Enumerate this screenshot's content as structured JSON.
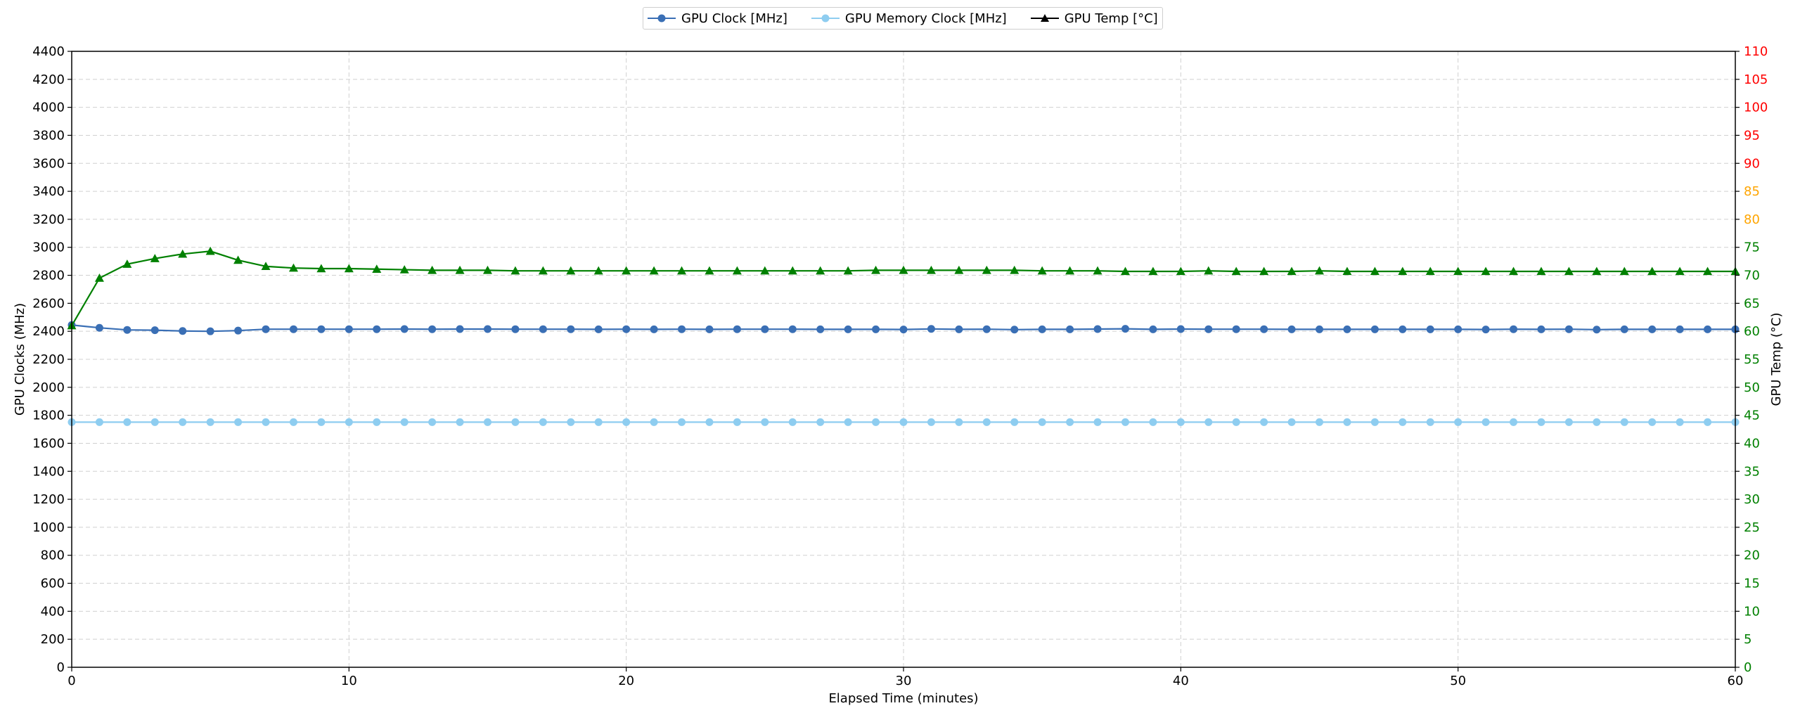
{
  "legend": [
    {
      "label": "GPU Clock [MHz]",
      "color": "#3a6fb5",
      "marker": "circle-icon"
    },
    {
      "label": "GPU Memory Clock [MHz]",
      "color": "#8ecdf0",
      "marker": "circle-icon"
    },
    {
      "label": "GPU Temp [°C]",
      "color": "#000000",
      "marker": "triangle-icon"
    }
  ],
  "chart_data": {
    "type": "line",
    "xlabel": "Elapsed Time (minutes)",
    "ylabel_left": "GPU Clocks (MHz)",
    "ylabel_right": "GPU Temp (°C)",
    "xlim": [
      0,
      60
    ],
    "ylim_left": [
      0,
      4400
    ],
    "ylim_right": [
      0,
      110
    ],
    "x_ticks": [
      0,
      10,
      20,
      30,
      40,
      50,
      60
    ],
    "y_left_ticks": [
      0,
      200,
      400,
      600,
      800,
      1000,
      1200,
      1400,
      1600,
      1800,
      2000,
      2200,
      2400,
      2600,
      2800,
      3000,
      3200,
      3400,
      3600,
      3800,
      4000,
      4200,
      4400
    ],
    "y_right_ticks": [
      0,
      5,
      10,
      15,
      20,
      25,
      30,
      35,
      40,
      45,
      50,
      55,
      60,
      65,
      70,
      75,
      80,
      85,
      90,
      95,
      100,
      105,
      110
    ],
    "right_tick_colors": {
      "low": "#008000",
      "warn": "#ffa500",
      "high": "#ff0000",
      "warn_from": 80,
      "high_from": 90
    },
    "grid": true,
    "legend_position": "top-center",
    "x": [
      0,
      1,
      2,
      3,
      4,
      5,
      6,
      7,
      8,
      9,
      10,
      11,
      12,
      13,
      14,
      15,
      16,
      17,
      18,
      19,
      20,
      21,
      22,
      23,
      24,
      25,
      26,
      27,
      28,
      29,
      30,
      31,
      32,
      33,
      34,
      35,
      36,
      37,
      38,
      39,
      40,
      41,
      42,
      43,
      44,
      45,
      46,
      47,
      48,
      49,
      50,
      51,
      52,
      53,
      54,
      55,
      56,
      57,
      58,
      59,
      60
    ],
    "series": [
      {
        "name": "GPU Clock [MHz]",
        "axis": "left",
        "color": "#3a6fb5",
        "marker": "circle",
        "values": [
          2445,
          2425,
          2410,
          2408,
          2402,
          2400,
          2405,
          2415,
          2415,
          2415,
          2415,
          2415,
          2416,
          2415,
          2416,
          2416,
          2415,
          2415,
          2415,
          2414,
          2415,
          2414,
          2415,
          2414,
          2415,
          2415,
          2415,
          2414,
          2414,
          2414,
          2413,
          2417,
          2414,
          2415,
          2412,
          2414,
          2414,
          2416,
          2418,
          2414,
          2416,
          2415,
          2415,
          2415,
          2414,
          2414,
          2414,
          2414,
          2414,
          2414,
          2414,
          2413,
          2415,
          2414,
          2415,
          2412,
          2414,
          2414,
          2414,
          2414,
          2414
        ]
      },
      {
        "name": "GPU Memory Clock [MHz]",
        "axis": "left",
        "color": "#8ecdf0",
        "marker": "circle",
        "values": [
          1751,
          1751,
          1751,
          1751,
          1751,
          1751,
          1751,
          1751,
          1751,
          1751,
          1751,
          1751,
          1751,
          1751,
          1751,
          1751,
          1751,
          1751,
          1751,
          1751,
          1751,
          1751,
          1751,
          1751,
          1751,
          1751,
          1751,
          1751,
          1751,
          1751,
          1751,
          1751,
          1751,
          1751,
          1751,
          1751,
          1751,
          1751,
          1751,
          1751,
          1751,
          1751,
          1751,
          1751,
          1751,
          1751,
          1751,
          1751,
          1751,
          1751,
          1751,
          1751,
          1751,
          1751,
          1751,
          1751,
          1751,
          1751,
          1751,
          1751,
          1751
        ]
      },
      {
        "name": "GPU Temp [°C]",
        "axis": "right",
        "color": "#008000",
        "marker": "triangle",
        "values": [
          61,
          69.5,
          72,
          73,
          73.8,
          74.3,
          72.7,
          71.6,
          71.3,
          71.2,
          71.2,
          71.1,
          71.0,
          70.9,
          70.9,
          70.9,
          70.8,
          70.8,
          70.8,
          70.8,
          70.8,
          70.8,
          70.8,
          70.8,
          70.8,
          70.8,
          70.8,
          70.8,
          70.8,
          70.9,
          70.9,
          70.9,
          70.9,
          70.9,
          70.9,
          70.8,
          70.8,
          70.8,
          70.7,
          70.7,
          70.7,
          70.8,
          70.7,
          70.7,
          70.7,
          70.8,
          70.7,
          70.7,
          70.7,
          70.7,
          70.7,
          70.7,
          70.7,
          70.7,
          70.7,
          70.7,
          70.7,
          70.7,
          70.7,
          70.7,
          70.7
        ]
      }
    ]
  }
}
